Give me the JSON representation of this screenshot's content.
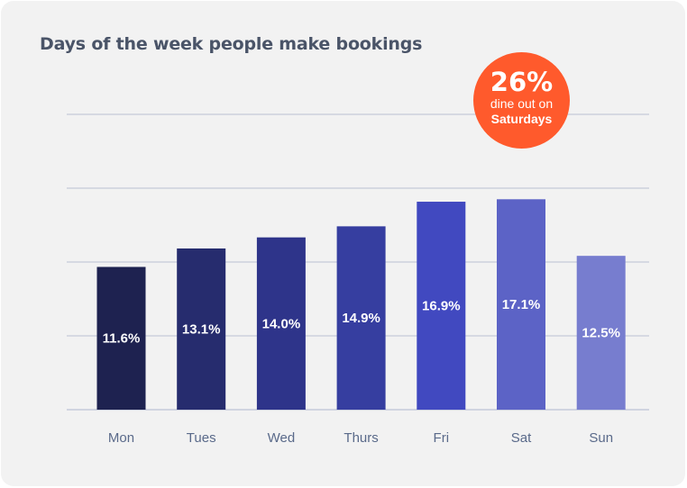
{
  "chart_data": {
    "type": "bar",
    "title": "Days of the week people make bookings",
    "xlabel": "",
    "ylabel": "",
    "categories": [
      "Mon",
      "Tues",
      "Wed",
      "Thurs",
      "Fri",
      "Sat",
      "Sun"
    ],
    "values": [
      11.6,
      13.1,
      14.0,
      14.9,
      16.9,
      17.1,
      12.5
    ],
    "data_labels": [
      "11.6%",
      "13.1%",
      "14.0%",
      "14.9%",
      "16.9%",
      "17.1%",
      "12.5%"
    ],
    "bar_colors": [
      "#1e2250",
      "#262c6e",
      "#2e348a",
      "#363ea0",
      "#4149c0",
      "#5c63c6",
      "#777dcf"
    ],
    "ylim": [
      0,
      24
    ],
    "grid": true,
    "gridline_color": "#c5cad9"
  },
  "callout": {
    "value": "26%",
    "line1": "dine out on",
    "line2": "Saturdays",
    "color": "#ff5a2c"
  }
}
